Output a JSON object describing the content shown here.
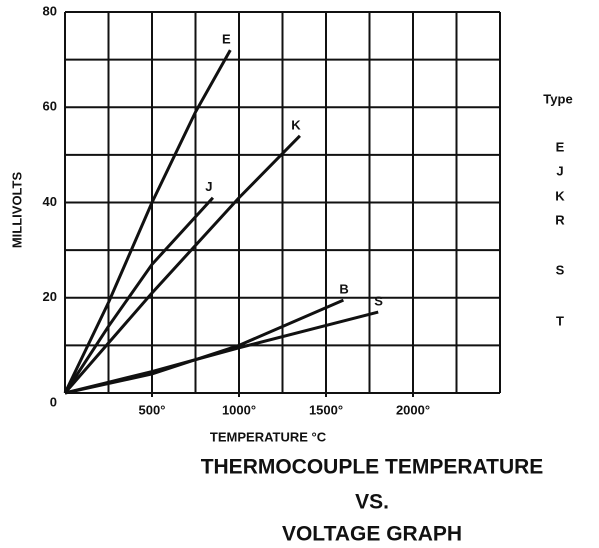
{
  "chart_data": {
    "type": "line",
    "title_lines": [
      "THERMOCOUPLE TEMPERATURE",
      "VS.",
      "VOLTAGE GRAPH"
    ],
    "xlabel": "TEMPERATURE °C",
    "ylabel": "MILLIVOLTS",
    "xlim": [
      0,
      2500
    ],
    "ylim": [
      0,
      80
    ],
    "xticks": [
      {
        "value": 500,
        "label": "500°"
      },
      {
        "value": 1000,
        "label": "1000°"
      },
      {
        "value": 1500,
        "label": "1500°"
      },
      {
        "value": 2000,
        "label": "2000°"
      }
    ],
    "yticks": [
      0,
      20,
      40,
      60,
      80
    ],
    "xgrid": [
      0,
      250,
      500,
      750,
      1000,
      1250,
      1500,
      1750,
      2000,
      2250,
      2500
    ],
    "ygrid": [
      0,
      10,
      20,
      30,
      40,
      50,
      60,
      70,
      80
    ],
    "grid": true,
    "series": [
      {
        "name": "E",
        "color": "#111111",
        "x": [
          0,
          250,
          500,
          750,
          950
        ],
        "values": [
          0,
          19,
          40,
          59,
          72
        ]
      },
      {
        "name": "J",
        "color": "#111111",
        "x": [
          0,
          250,
          500,
          850
        ],
        "values": [
          0,
          14,
          27,
          41
        ]
      },
      {
        "name": "K",
        "color": "#111111",
        "x": [
          0,
          500,
          1000,
          1350
        ],
        "values": [
          0,
          21,
          41,
          54
        ]
      },
      {
        "name": "B",
        "color": "#111111",
        "x": [
          0,
          500,
          1000,
          1600
        ],
        "values": [
          0,
          4,
          10,
          19.5
        ]
      },
      {
        "name": "S",
        "color": "#111111",
        "x": [
          0,
          500,
          1000,
          1800
        ],
        "values": [
          0,
          4.5,
          9.5,
          17
        ]
      }
    ],
    "type_legend": {
      "title": "Type",
      "items": [
        "E",
        "J",
        "K",
        "R",
        "S",
        "T"
      ]
    }
  }
}
